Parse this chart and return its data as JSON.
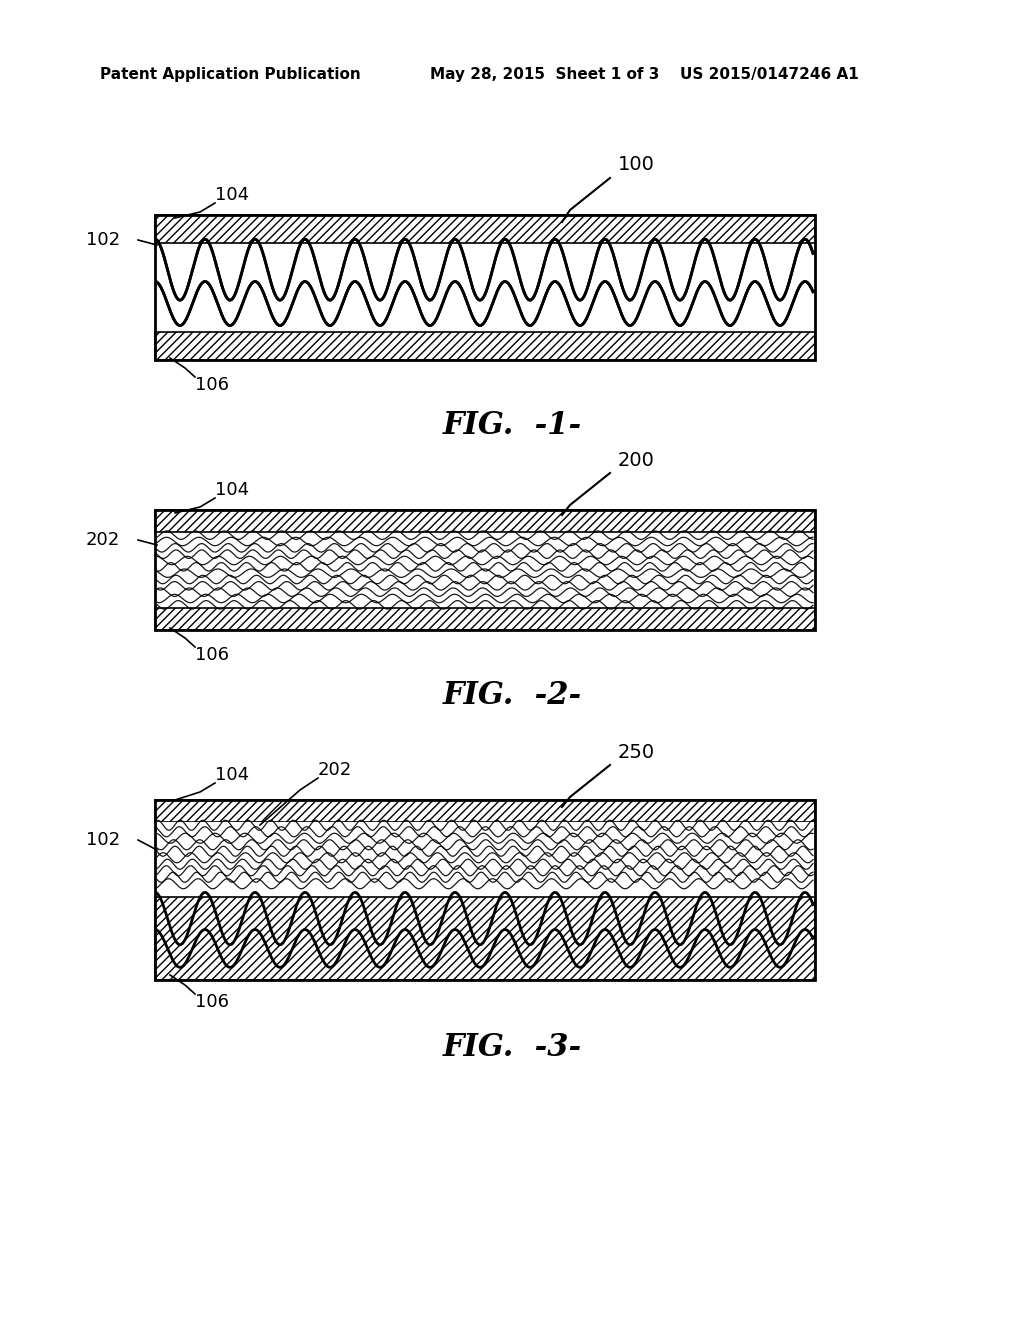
{
  "bg_color": "#ffffff",
  "header_text": "Patent Application Publication",
  "header_date": "May 28, 2015  Sheet 1 of 3",
  "header_patent": "US 2015/0147246 A1",
  "fig1_label": "FIG.  -1-",
  "fig2_label": "FIG.  -2-",
  "fig3_label": "FIG.  -3-",
  "ref_100": "100",
  "ref_102": "102",
  "ref_104": "104",
  "ref_106": "106",
  "ref_200": "200",
  "ref_202": "202",
  "ref_250": "250",
  "hatch_color": "#000000",
  "line_color": "#000000"
}
